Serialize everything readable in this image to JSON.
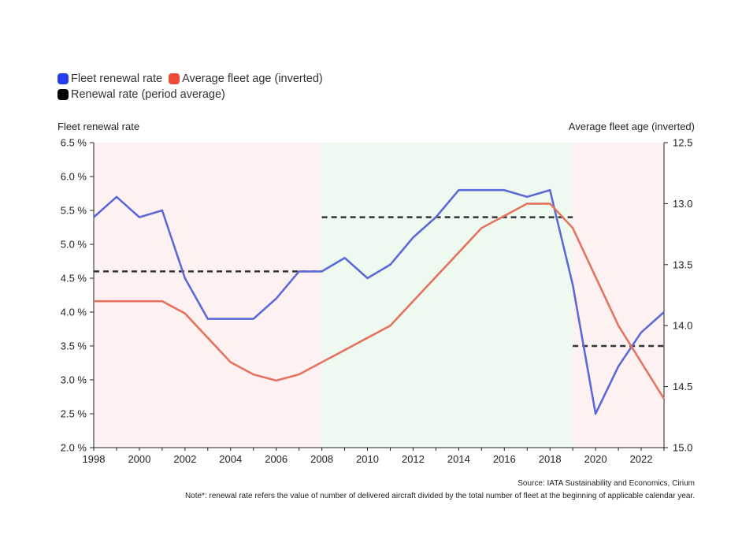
{
  "legend": {
    "items": [
      {
        "label": "Fleet renewal rate",
        "color": "#2a3df0"
      },
      {
        "label": "Average fleet age (inverted)",
        "color": "#ee4b3a"
      },
      {
        "label": "Renewal rate (period average)",
        "color": "#000000"
      }
    ]
  },
  "axis_titles": {
    "left": "Fleet renewal rate",
    "right": "Average fleet age (inverted)"
  },
  "footer": {
    "source": "Source: IATA Sustainability and Economics, Cirium",
    "note": "Note*: renewal rate refers the value of number of delivered aircraft divided by the total number of fleet at the beginning of applicable calendar year."
  },
  "chart_data": {
    "type": "line",
    "x": [
      1998,
      1999,
      2000,
      2001,
      2002,
      2003,
      2004,
      2005,
      2006,
      2007,
      2008,
      2009,
      2010,
      2011,
      2012,
      2013,
      2014,
      2015,
      2016,
      2017,
      2018,
      2019,
      2020,
      2021,
      2022,
      2023
    ],
    "xlim": [
      1998,
      2023
    ],
    "x_ticks": [
      "1998",
      "2000",
      "2002",
      "2004",
      "2006",
      "2008",
      "2010",
      "2012",
      "2014",
      "2016",
      "2018",
      "2020",
      "2022"
    ],
    "series": [
      {
        "name": "Fleet renewal rate",
        "axis": "left",
        "color": "#5c6ad8",
        "values": [
          5.4,
          5.7,
          5.4,
          5.5,
          4.5,
          3.9,
          3.9,
          3.9,
          4.2,
          4.6,
          4.6,
          4.8,
          4.5,
          4.7,
          5.1,
          5.4,
          5.8,
          5.8,
          5.8,
          5.7,
          5.8,
          4.4,
          2.5,
          3.2,
          3.7,
          4.0
        ]
      },
      {
        "name": "Average fleet age (inverted)",
        "axis": "right",
        "color": "#e47460",
        "values": [
          13.8,
          13.8,
          13.8,
          13.8,
          13.9,
          14.1,
          14.3,
          14.4,
          14.45,
          14.4,
          14.3,
          14.2,
          14.1,
          14.0,
          13.8,
          13.6,
          13.4,
          13.2,
          13.1,
          13.0,
          13.0,
          13.2,
          13.6,
          14.0,
          14.3,
          14.6
        ]
      }
    ],
    "period_averages": [
      {
        "x_start": 1998,
        "x_end": 2008,
        "value": 4.6
      },
      {
        "x_start": 2008,
        "x_end": 2019,
        "value": 5.4
      },
      {
        "x_start": 2019,
        "x_end": 2023,
        "value": 3.5
      }
    ],
    "shaded_periods": [
      {
        "x_start": 1998,
        "x_end": 2008,
        "color": "#fdf2f1"
      },
      {
        "x_start": 2008,
        "x_end": 2019,
        "color": "#eefaef"
      },
      {
        "x_start": 2019,
        "x_end": 2023,
        "color": "#fdf2f1"
      }
    ],
    "y_left": {
      "ylim": [
        2.0,
        6.5
      ],
      "ticks": [
        2.0,
        2.5,
        3.0,
        3.5,
        4.0,
        4.5,
        5.0,
        5.5,
        6.0,
        6.5
      ],
      "tick_labels": [
        "2.0 %",
        "2.5 %",
        "3.0 %",
        "3.5 %",
        "4.0 %",
        "4.5 %",
        "5.0 %",
        "5.5 %",
        "6.0 %",
        "6.5 %"
      ]
    },
    "y_right": {
      "ylim": [
        15.0,
        12.5
      ],
      "inverted": true,
      "ticks": [
        12.5,
        13.0,
        13.5,
        14.0,
        14.5,
        15.0
      ],
      "tick_labels": [
        "12.5",
        "13.0",
        "13.5",
        "14.0",
        "14.5",
        "15.0"
      ]
    },
    "grid": false,
    "legend_position": "top-left"
  }
}
